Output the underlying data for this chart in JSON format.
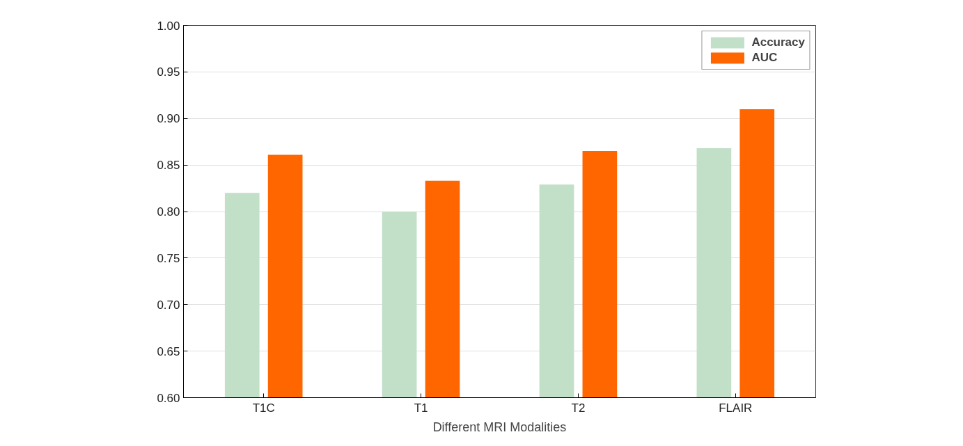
{
  "chart_data": {
    "type": "bar",
    "xlabel": "Different MRI Modalities",
    "categories": [
      "T1C",
      "T1",
      "T2",
      "FLAIR"
    ],
    "series": [
      {
        "name": "Accuracy",
        "color": "#c2dfc8",
        "values": [
          0.82,
          0.8,
          0.829,
          0.868
        ]
      },
      {
        "name": "AUC",
        "color": "#ff6600",
        "values": [
          0.861,
          0.833,
          0.865,
          0.91
        ]
      }
    ],
    "ylim": [
      0.6,
      1.0
    ],
    "yticks": [
      {
        "value": 0.6,
        "label": "0.60"
      },
      {
        "value": 0.65,
        "label": "0.65"
      },
      {
        "value": 0.7,
        "label": "0.70"
      },
      {
        "value": 0.75,
        "label": "0.75"
      },
      {
        "value": 0.8,
        "label": "0.80"
      },
      {
        "value": 0.85,
        "label": "0.85"
      },
      {
        "value": 0.9,
        "label": "0.90"
      },
      {
        "value": 0.95,
        "label": "0.95"
      },
      {
        "value": 1.0,
        "label": "1.00"
      }
    ],
    "grid": "y",
    "legend": "top right"
  }
}
